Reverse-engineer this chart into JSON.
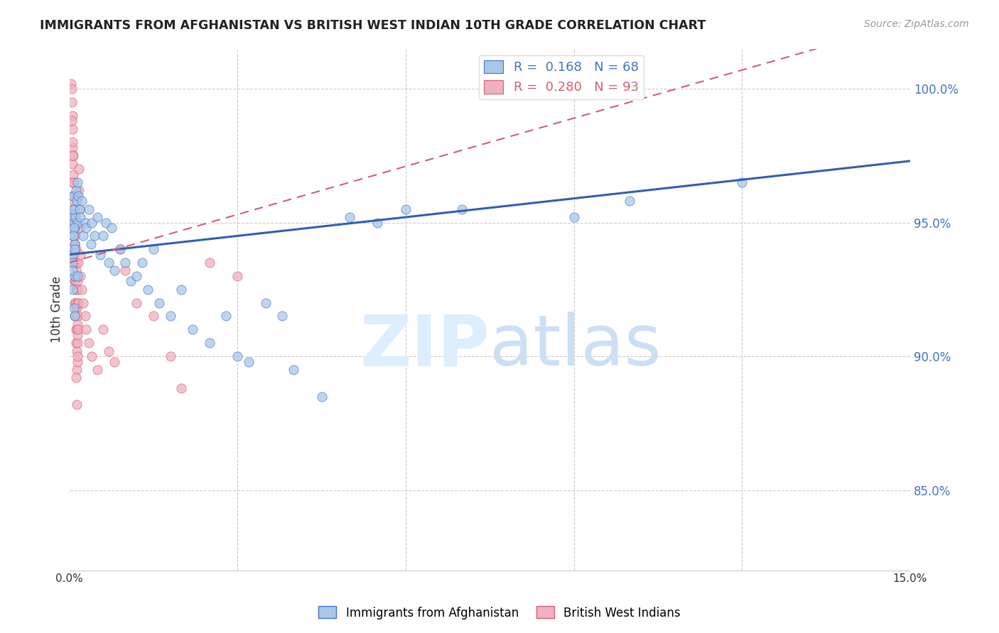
{
  "title": "IMMIGRANTS FROM AFGHANISTAN VS BRITISH WEST INDIAN 10TH GRADE CORRELATION CHART",
  "source": "Source: ZipAtlas.com",
  "ylabel": "10th Grade",
  "y_ticks": [
    85.0,
    90.0,
    95.0,
    100.0
  ],
  "y_tick_labels": [
    "85.0%",
    "90.0%",
    "95.0%",
    "100.0%"
  ],
  "x_lim": [
    0.0,
    15.0
  ],
  "y_lim": [
    82.0,
    101.5
  ],
  "afghanistan_color": "#a8c8e8",
  "afghanistan_edge": "#4472c4",
  "bwi_color": "#f0b0c0",
  "bwi_edge": "#d06070",
  "trendline_afghanistan_color": "#3060b0",
  "trendline_bwi_color": "#d06070",
  "afg_trend": [
    0.0,
    93.8,
    15.0,
    97.3
  ],
  "bwi_trend": [
    0.0,
    93.5,
    15.0,
    102.5
  ],
  "afghanistan_scatter": [
    [
      0.05,
      95.2
    ],
    [
      0.07,
      96.0
    ],
    [
      0.09,
      94.8
    ],
    [
      0.1,
      95.5
    ],
    [
      0.12,
      96.2
    ],
    [
      0.05,
      94.5
    ],
    [
      0.08,
      95.0
    ],
    [
      0.1,
      94.2
    ],
    [
      0.13,
      95.8
    ],
    [
      0.15,
      96.5
    ],
    [
      0.06,
      93.8
    ],
    [
      0.09,
      94.0
    ],
    [
      0.11,
      95.2
    ],
    [
      0.14,
      95.0
    ],
    [
      0.16,
      96.0
    ],
    [
      0.05,
      93.5
    ],
    [
      0.08,
      94.8
    ],
    [
      0.1,
      93.0
    ],
    [
      0.05,
      95.5
    ],
    [
      0.07,
      94.5
    ],
    [
      0.18,
      95.5
    ],
    [
      0.2,
      95.2
    ],
    [
      0.22,
      95.8
    ],
    [
      0.25,
      94.5
    ],
    [
      0.28,
      95.0
    ],
    [
      0.3,
      94.8
    ],
    [
      0.35,
      95.5
    ],
    [
      0.38,
      94.2
    ],
    [
      0.4,
      95.0
    ],
    [
      0.45,
      94.5
    ],
    [
      0.5,
      95.2
    ],
    [
      0.55,
      93.8
    ],
    [
      0.6,
      94.5
    ],
    [
      0.65,
      95.0
    ],
    [
      0.7,
      93.5
    ],
    [
      0.75,
      94.8
    ],
    [
      0.8,
      93.2
    ],
    [
      0.9,
      94.0
    ],
    [
      1.0,
      93.5
    ],
    [
      1.1,
      92.8
    ],
    [
      1.2,
      93.0
    ],
    [
      1.3,
      93.5
    ],
    [
      1.4,
      92.5
    ],
    [
      1.5,
      94.0
    ],
    [
      1.6,
      92.0
    ],
    [
      1.8,
      91.5
    ],
    [
      2.0,
      92.5
    ],
    [
      2.2,
      91.0
    ],
    [
      2.5,
      90.5
    ],
    [
      2.8,
      91.5
    ],
    [
      3.0,
      90.0
    ],
    [
      3.2,
      89.8
    ],
    [
      3.5,
      92.0
    ],
    [
      3.8,
      91.5
    ],
    [
      4.0,
      89.5
    ],
    [
      4.5,
      88.5
    ],
    [
      5.0,
      95.2
    ],
    [
      5.5,
      95.0
    ],
    [
      6.0,
      95.5
    ],
    [
      7.0,
      95.5
    ],
    [
      9.0,
      95.2
    ],
    [
      10.0,
      95.8
    ],
    [
      12.0,
      96.5
    ],
    [
      0.05,
      93.2
    ],
    [
      0.06,
      92.5
    ],
    [
      0.08,
      91.8
    ],
    [
      0.1,
      91.5
    ],
    [
      0.15,
      93.0
    ]
  ],
  "bwi_scatter": [
    [
      0.03,
      100.2
    ],
    [
      0.04,
      99.5
    ],
    [
      0.04,
      100.0
    ],
    [
      0.05,
      99.0
    ],
    [
      0.05,
      98.5
    ],
    [
      0.05,
      97.8
    ],
    [
      0.06,
      98.0
    ],
    [
      0.06,
      97.2
    ],
    [
      0.06,
      96.5
    ],
    [
      0.07,
      97.5
    ],
    [
      0.07,
      96.8
    ],
    [
      0.07,
      96.0
    ],
    [
      0.07,
      95.5
    ],
    [
      0.08,
      96.5
    ],
    [
      0.08,
      95.8
    ],
    [
      0.08,
      95.2
    ],
    [
      0.08,
      94.5
    ],
    [
      0.08,
      93.8
    ],
    [
      0.09,
      95.5
    ],
    [
      0.09,
      94.8
    ],
    [
      0.09,
      94.2
    ],
    [
      0.09,
      93.5
    ],
    [
      0.09,
      92.8
    ],
    [
      0.1,
      95.0
    ],
    [
      0.1,
      94.2
    ],
    [
      0.1,
      93.5
    ],
    [
      0.1,
      92.8
    ],
    [
      0.1,
      92.0
    ],
    [
      0.1,
      91.5
    ],
    [
      0.11,
      94.5
    ],
    [
      0.11,
      93.5
    ],
    [
      0.11,
      92.8
    ],
    [
      0.11,
      92.0
    ],
    [
      0.11,
      91.5
    ],
    [
      0.12,
      94.0
    ],
    [
      0.12,
      93.2
    ],
    [
      0.12,
      92.5
    ],
    [
      0.12,
      91.8
    ],
    [
      0.12,
      91.0
    ],
    [
      0.12,
      90.5
    ],
    [
      0.13,
      93.5
    ],
    [
      0.13,
      92.5
    ],
    [
      0.13,
      91.8
    ],
    [
      0.13,
      91.0
    ],
    [
      0.13,
      90.2
    ],
    [
      0.13,
      89.5
    ],
    [
      0.14,
      92.8
    ],
    [
      0.14,
      92.0
    ],
    [
      0.14,
      91.2
    ],
    [
      0.14,
      90.5
    ],
    [
      0.14,
      89.8
    ],
    [
      0.15,
      92.5
    ],
    [
      0.15,
      91.5
    ],
    [
      0.15,
      90.8
    ],
    [
      0.15,
      90.0
    ],
    [
      0.16,
      93.5
    ],
    [
      0.16,
      92.0
    ],
    [
      0.16,
      91.0
    ],
    [
      0.17,
      97.0
    ],
    [
      0.17,
      96.2
    ],
    [
      0.18,
      95.5
    ],
    [
      0.18,
      94.8
    ],
    [
      0.2,
      93.8
    ],
    [
      0.2,
      93.0
    ],
    [
      0.22,
      92.5
    ],
    [
      0.25,
      92.0
    ],
    [
      0.28,
      91.5
    ],
    [
      0.3,
      91.0
    ],
    [
      0.35,
      90.5
    ],
    [
      0.4,
      90.0
    ],
    [
      0.5,
      89.5
    ],
    [
      0.6,
      91.0
    ],
    [
      0.7,
      90.2
    ],
    [
      0.8,
      89.8
    ],
    [
      0.9,
      94.0
    ],
    [
      1.0,
      93.2
    ],
    [
      1.2,
      92.0
    ],
    [
      1.5,
      91.5
    ],
    [
      1.8,
      90.0
    ],
    [
      2.0,
      88.8
    ],
    [
      2.5,
      93.5
    ],
    [
      3.0,
      93.0
    ],
    [
      0.04,
      98.8
    ],
    [
      0.05,
      97.5
    ],
    [
      0.06,
      96.5
    ],
    [
      0.07,
      96.0
    ],
    [
      0.08,
      95.5
    ],
    [
      0.09,
      95.0
    ],
    [
      0.1,
      94.0
    ],
    [
      0.11,
      93.0
    ],
    [
      0.12,
      89.2
    ],
    [
      0.13,
      88.2
    ],
    [
      0.14,
      96.0
    ]
  ]
}
